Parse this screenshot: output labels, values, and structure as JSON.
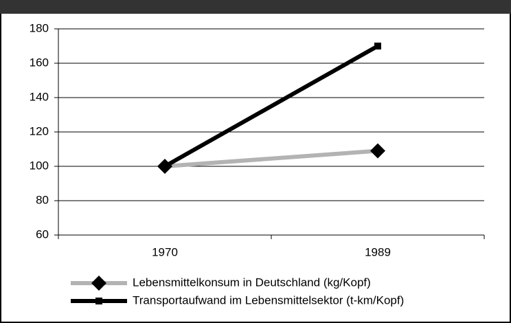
{
  "chart_data": {
    "type": "line",
    "categories": [
      "1970",
      "1989"
    ],
    "series": [
      {
        "name": "Lebensmittelkonsum in Deutschland (kg/Kopf)",
        "color": "#b3b3b3",
        "marker": "diamond",
        "values": [
          100,
          109
        ]
      },
      {
        "name": "Transportaufwand im Lebensmittelsektor (t-km/Kopf)",
        "color": "#000000",
        "marker": "square",
        "values": [
          100,
          170
        ]
      }
    ],
    "ylim": [
      60,
      180
    ],
    "yticks": [
      60,
      80,
      100,
      120,
      140,
      160,
      180
    ],
    "grid": true,
    "legend": "bottom"
  }
}
